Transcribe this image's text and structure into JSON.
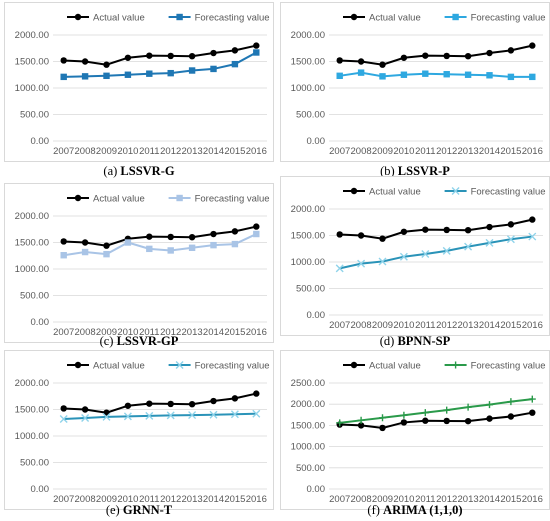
{
  "years": [
    "2007",
    "2008",
    "2009",
    "2010",
    "2011",
    "2012",
    "2013",
    "2014",
    "2015",
    "2016"
  ],
  "colors": {
    "actual": "#000000",
    "blue_dark": "#1f77b4",
    "blue_bright": "#2ea8e0",
    "blue_light": "#a9c4e6",
    "teal": "#2a93b8",
    "green": "#2a9a4a",
    "grid": "#d9d9d9"
  },
  "chart_data": [
    {
      "type": "line",
      "caption_prefix": "(a) ",
      "caption_bold": "LSSVR-G",
      "categories": [
        "2007",
        "2008",
        "2009",
        "2010",
        "2011",
        "2012",
        "2013",
        "2014",
        "2015",
        "2016"
      ],
      "ylim": [
        0,
        2000
      ],
      "yticks": [
        "0.00",
        "500.00",
        "1000.00",
        "1500.00",
        "2000.00"
      ],
      "legend_position": "top",
      "series": [
        {
          "name": "Actual value",
          "marker": "circle",
          "color": "#000000",
          "values": [
            1520,
            1500,
            1440,
            1570,
            1610,
            1605,
            1600,
            1660,
            1710,
            1800
          ]
        },
        {
          "name": "Forecasting value",
          "marker": "square",
          "color": "#1f77b4",
          "values": [
            1210,
            1220,
            1230,
            1250,
            1270,
            1280,
            1330,
            1360,
            1450,
            1670
          ]
        }
      ]
    },
    {
      "type": "line",
      "caption_prefix": "(b) ",
      "caption_bold": "LSSVR-P",
      "categories": [
        "2007",
        "2008",
        "2009",
        "2010",
        "2011",
        "2012",
        "2013",
        "2014",
        "2015",
        "2016"
      ],
      "ylim": [
        0,
        2000
      ],
      "yticks": [
        "0.00",
        "500.00",
        "1000.00",
        "1500.00",
        "2000.00"
      ],
      "legend_position": "top",
      "series": [
        {
          "name": "Actual value",
          "marker": "circle",
          "color": "#000000",
          "values": [
            1520,
            1500,
            1440,
            1570,
            1610,
            1605,
            1600,
            1660,
            1710,
            1800
          ]
        },
        {
          "name": "Forecasting value",
          "marker": "square",
          "color": "#2ea8e0",
          "values": [
            1230,
            1290,
            1220,
            1250,
            1270,
            1260,
            1250,
            1240,
            1210,
            1210
          ]
        }
      ]
    },
    {
      "type": "line",
      "caption_prefix": "(c) ",
      "caption_bold": "LSSVR-GP",
      "categories": [
        "2007",
        "2008",
        "2009",
        "2010",
        "2011",
        "2012",
        "2013",
        "2014",
        "2015",
        "2016"
      ],
      "ylim": [
        0,
        2000
      ],
      "yticks": [
        "0.00",
        "500.00",
        "1000.00",
        "1500.00",
        "2000.00"
      ],
      "legend_position": "top",
      "series": [
        {
          "name": "Actual value",
          "marker": "circle",
          "color": "#000000",
          "values": [
            1520,
            1500,
            1440,
            1570,
            1610,
            1605,
            1600,
            1660,
            1710,
            1800
          ]
        },
        {
          "name": "Forecasting value",
          "marker": "square",
          "color": "#a9c4e6",
          "values": [
            1260,
            1320,
            1280,
            1500,
            1380,
            1350,
            1400,
            1450,
            1470,
            1660
          ]
        }
      ]
    },
    {
      "type": "line",
      "caption_prefix": "(d) ",
      "caption_bold": "BPNN-SP",
      "categories": [
        "2007",
        "2008",
        "2009",
        "2010",
        "2011",
        "2012",
        "2013",
        "2014",
        "2015",
        "2016"
      ],
      "ylim": [
        0,
        2000
      ],
      "yticks": [
        "0.00",
        "500.00",
        "1000.00",
        "1500.00",
        "2000.00"
      ],
      "legend_position": "top",
      "series": [
        {
          "name": "Actual value",
          "marker": "circle",
          "color": "#000000",
          "values": [
            1520,
            1500,
            1440,
            1570,
            1610,
            1605,
            1600,
            1660,
            1710,
            1800
          ]
        },
        {
          "name": "Forecasting value",
          "marker": "x",
          "color": "#2a93b8",
          "values": [
            880,
            970,
            1010,
            1100,
            1150,
            1210,
            1290,
            1360,
            1430,
            1480
          ]
        }
      ]
    },
    {
      "type": "line",
      "caption_prefix": "(e) ",
      "caption_bold": "GRNN-T",
      "categories": [
        "2007",
        "2008",
        "2009",
        "2010",
        "2011",
        "2012",
        "2013",
        "2014",
        "2015",
        "2016"
      ],
      "ylim": [
        0,
        2000
      ],
      "yticks": [
        "0.00",
        "500.00",
        "1000.00",
        "1500.00",
        "2000.00"
      ],
      "legend_position": "top",
      "series": [
        {
          "name": "Actual value",
          "marker": "circle",
          "color": "#000000",
          "values": [
            1520,
            1500,
            1440,
            1570,
            1610,
            1605,
            1600,
            1660,
            1710,
            1800
          ]
        },
        {
          "name": "Forecasting value",
          "marker": "x",
          "color": "#2a93b8",
          "values": [
            1320,
            1340,
            1360,
            1370,
            1380,
            1390,
            1395,
            1400,
            1410,
            1420
          ]
        }
      ]
    },
    {
      "type": "line",
      "caption_prefix": "(f) ",
      "caption_bold": "ARIMA (1,1,0)",
      "categories": [
        "2007",
        "2008",
        "2009",
        "2010",
        "2011",
        "2012",
        "2013",
        "2014",
        "2015",
        "2016"
      ],
      "ylim": [
        0,
        2500
      ],
      "yticks": [
        "0.00",
        "500.00",
        "1000.00",
        "1500.00",
        "2000.00",
        "2500.00"
      ],
      "legend_position": "top",
      "series": [
        {
          "name": "Actual value",
          "marker": "circle",
          "color": "#000000",
          "values": [
            1520,
            1500,
            1440,
            1570,
            1610,
            1605,
            1600,
            1660,
            1710,
            1800
          ]
        },
        {
          "name": "Forecasting value",
          "marker": "plus",
          "color": "#2a9a4a",
          "values": [
            1560,
            1620,
            1680,
            1740,
            1800,
            1860,
            1930,
            1990,
            2060,
            2120
          ]
        }
      ]
    }
  ]
}
